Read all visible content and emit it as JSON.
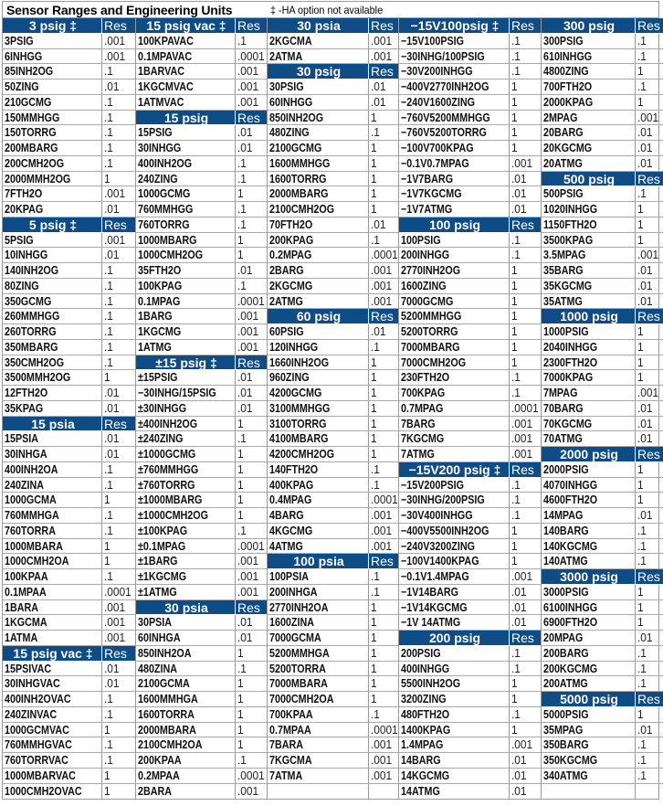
{
  "title": "Sensor Ranges and Engineering Units",
  "note": "‡ -HA option not available",
  "header_color": "#0f4c86",
  "columns": [
    {
      "rows": [
        {
          "n": "3 psig ‡",
          "r": "Res",
          "h": true
        },
        {
          "n": "3PSIG",
          "r": ".001"
        },
        {
          "n": "6INHGG",
          "r": ".001"
        },
        {
          "n": "85INH2OG",
          "r": ".1"
        },
        {
          "n": "50ZING",
          "r": ".01"
        },
        {
          "n": "210GCMG",
          "r": ".1"
        },
        {
          "n": "150MMHGG",
          "r": ".1"
        },
        {
          "n": "150TORRG",
          "r": ".1"
        },
        {
          "n": "200MBARG",
          "r": ".1"
        },
        {
          "n": "200CMH2OG",
          "r": ".1"
        },
        {
          "n": "2000MMH2OG",
          "r": "1"
        },
        {
          "n": "7FTH2O",
          "r": ".001"
        },
        {
          "n": "20KPAG",
          "r": ".01"
        },
        {
          "n": "5 psig ‡",
          "r": "Res",
          "h": true
        },
        {
          "n": "5PSIG",
          "r": ".001"
        },
        {
          "n": "10INHGG",
          "r": ".01"
        },
        {
          "n": "140INH2OG",
          "r": ".1"
        },
        {
          "n": "80ZING",
          "r": ".1"
        },
        {
          "n": "350GCMG",
          "r": ".1"
        },
        {
          "n": "260MMHGG",
          "r": ".1"
        },
        {
          "n": "260TORRG",
          "r": ".1"
        },
        {
          "n": "350MBARG",
          "r": ".1"
        },
        {
          "n": "350CMH2OG",
          "r": ".1"
        },
        {
          "n": "3500MMH2OG",
          "r": "1"
        },
        {
          "n": "12FTH2O",
          "r": ".01"
        },
        {
          "n": "35KPAG",
          "r": ".01"
        },
        {
          "n": "15 psia",
          "r": "Res",
          "h": true
        },
        {
          "n": "15PSIA",
          "r": ".01"
        },
        {
          "n": "30INHGA",
          "r": ".01"
        },
        {
          "n": "400INH2OA",
          "r": ".1"
        },
        {
          "n": "240ZINA",
          "r": ".1"
        },
        {
          "n": "1000GCMA",
          "r": "1"
        },
        {
          "n": "760MMHGA",
          "r": ".1"
        },
        {
          "n": "760TORRA",
          "r": ".1"
        },
        {
          "n": "1000MBARA",
          "r": "1"
        },
        {
          "n": "1000CMH2OA",
          "r": "1"
        },
        {
          "n": "100KPAA",
          "r": ".1"
        },
        {
          "n": "0.1MPAA",
          "r": ".0001"
        },
        {
          "n": "1BARA",
          "r": ".001"
        },
        {
          "n": "1KGCMA",
          "r": ".001"
        },
        {
          "n": "1ATMA",
          "r": ".001"
        },
        {
          "n": "15 psig vac ‡",
          "r": "Res",
          "h": true
        },
        {
          "n": "15PSIVAC",
          "r": ".01"
        },
        {
          "n": "30INHGVAC",
          "r": ".01"
        },
        {
          "n": "400INH2OVAC",
          "r": ".1"
        },
        {
          "n": "240ZINVAC",
          "r": ".1"
        },
        {
          "n": "1000GCMVAC",
          "r": "1"
        },
        {
          "n": "760MMHGVAC",
          "r": ".1"
        },
        {
          "n": "760TORRVAC",
          "r": ".1"
        },
        {
          "n": "1000MBARVAC",
          "r": "1"
        },
        {
          "n": "1000CMH2OVAC",
          "r": "1"
        }
      ]
    },
    {
      "rows": [
        {
          "n": "15 psig vac ‡",
          "r": "Res",
          "h": true
        },
        {
          "n": "100KPAVAC",
          "r": ".1"
        },
        {
          "n": "0.1MPAVAC",
          "r": ".0001"
        },
        {
          "n": "1BARVAC",
          "r": ".001"
        },
        {
          "n": "1KGCMVAC",
          "r": ".001"
        },
        {
          "n": "1ATMVAC",
          "r": ".001"
        },
        {
          "n": "15 psig",
          "r": "Res",
          "h": true
        },
        {
          "n": "15PSIG",
          "r": ".01"
        },
        {
          "n": "30INHGG",
          "r": ".01"
        },
        {
          "n": "400INH2OG",
          "r": ".1"
        },
        {
          "n": "240ZING",
          "r": ".1"
        },
        {
          "n": "1000GCMG",
          "r": "1"
        },
        {
          "n": "760MMHGG",
          "r": ".1"
        },
        {
          "n": "760TORRG",
          "r": ".1"
        },
        {
          "n": "1000MBARG",
          "r": "1"
        },
        {
          "n": "1000CMH2OG",
          "r": "1"
        },
        {
          "n": "35FTH2O",
          "r": ".01"
        },
        {
          "n": "100KPAG",
          "r": ".1"
        },
        {
          "n": "0.1MPAG",
          "r": ".0001"
        },
        {
          "n": "1BARG",
          "r": ".001"
        },
        {
          "n": "1KGCMG",
          "r": ".001"
        },
        {
          "n": "1ATMG",
          "r": ".001"
        },
        {
          "n": "±15 psig ‡",
          "r": "Res",
          "h": true
        },
        {
          "n": "±15PSIG",
          "r": ".01"
        },
        {
          "n": "−30INHG/15PSIG",
          "r": ".01"
        },
        {
          "n": "±30INHGG",
          "r": ".01"
        },
        {
          "n": "±400INH2OG",
          "r": "1"
        },
        {
          "n": "±240ZING",
          "r": ".1"
        },
        {
          "n": "±1000GCMG",
          "r": "1"
        },
        {
          "n": "±760MMHGG",
          "r": "1"
        },
        {
          "n": "±760TORRG",
          "r": "1"
        },
        {
          "n": "±1000MBARG",
          "r": "1"
        },
        {
          "n": "±1000CMH2OG",
          "r": "1"
        },
        {
          "n": "±100KPAG",
          "r": ".1"
        },
        {
          "n": "±0.1MPAG",
          "r": ".0001"
        },
        {
          "n": "±1BARG",
          "r": ".001"
        },
        {
          "n": "±1KGCMG",
          "r": ".001"
        },
        {
          "n": "±1ATMG",
          "r": ".001"
        },
        {
          "n": "30 psia",
          "r": "Res",
          "h": true
        },
        {
          "n": "30PSIA",
          "r": ".01"
        },
        {
          "n": "60INHGA",
          "r": ".01"
        },
        {
          "n": "850INH2OA",
          "r": "1"
        },
        {
          "n": "480ZINA",
          "r": ".1"
        },
        {
          "n": "2100GCMA",
          "r": "1"
        },
        {
          "n": "1600MMHGA",
          "r": "1"
        },
        {
          "n": "1600TORRA",
          "r": "1"
        },
        {
          "n": "2000MBARA",
          "r": "1"
        },
        {
          "n": "2100CMH2OA",
          "r": "1"
        },
        {
          "n": "200KPAA",
          "r": ".1"
        },
        {
          "n": "0.2MPAA",
          "r": ".0001"
        },
        {
          "n": "2BARA",
          "r": ".001"
        }
      ]
    },
    {
      "rows": [
        {
          "n": "30 psia",
          "r": "Res",
          "h": true
        },
        {
          "n": "2KGCMA",
          "r": ".001"
        },
        {
          "n": "2ATMA",
          "r": ".001"
        },
        {
          "n": "30 psig",
          "r": "Res",
          "h": true
        },
        {
          "n": "30PSIG",
          "r": ".01"
        },
        {
          "n": "60INHGG",
          "r": ".01"
        },
        {
          "n": "850INH2OG",
          "r": "1"
        },
        {
          "n": "480ZING",
          "r": ".1"
        },
        {
          "n": "2100GCMG",
          "r": "1"
        },
        {
          "n": "1600MMHGG",
          "r": "1"
        },
        {
          "n": "1600TORRG",
          "r": "1"
        },
        {
          "n": "2000MBARG",
          "r": "1"
        },
        {
          "n": "2100CMH2OG",
          "r": "1"
        },
        {
          "n": "70FTH2O",
          "r": ".01"
        },
        {
          "n": "200KPAG",
          "r": ".1"
        },
        {
          "n": "0.2MPAG",
          "r": ".0001"
        },
        {
          "n": "2BARG",
          "r": ".001"
        },
        {
          "n": "2KGCMG",
          "r": ".001"
        },
        {
          "n": "2ATMG",
          "r": ".001"
        },
        {
          "n": "60 psig",
          "r": "Res",
          "h": true
        },
        {
          "n": "60PSIG",
          "r": ".01"
        },
        {
          "n": "120INHGG",
          "r": ".1"
        },
        {
          "n": "1660INH2OG",
          "r": "1"
        },
        {
          "n": "960ZING",
          "r": "1"
        },
        {
          "n": "4200GCMG",
          "r": "1"
        },
        {
          "n": "3100MMHGG",
          "r": "1"
        },
        {
          "n": "3100TORRG",
          "r": "1"
        },
        {
          "n": "4100MBARG",
          "r": "1"
        },
        {
          "n": "4200CMH2OG",
          "r": "1"
        },
        {
          "n": "140FTH2O",
          "r": ".1"
        },
        {
          "n": "400KPAG",
          "r": ".1"
        },
        {
          "n": "0.4MPAG",
          "r": ".0001"
        },
        {
          "n": "4BARG",
          "r": ".001"
        },
        {
          "n": "4KGCMG",
          "r": ".001"
        },
        {
          "n": "4ATMG",
          "r": ".001"
        },
        {
          "n": "100 psia",
          "r": "Res",
          "h": true
        },
        {
          "n": "100PSIA",
          "r": ".1"
        },
        {
          "n": "200INHGA",
          "r": ".1"
        },
        {
          "n": "2770INH2OA",
          "r": "1"
        },
        {
          "n": "1600ZINA",
          "r": "1"
        },
        {
          "n": "7000GCMA",
          "r": "1"
        },
        {
          "n": "5200MMHGA",
          "r": "1"
        },
        {
          "n": "5200TORRA",
          "r": "1"
        },
        {
          "n": "7000MBARA",
          "r": "1"
        },
        {
          "n": "7000CMH2OA",
          "r": "1"
        },
        {
          "n": "700KPAA",
          "r": ".1"
        },
        {
          "n": "0.7MPAA",
          "r": ".0001"
        },
        {
          "n": "7BARA",
          "r": ".001"
        },
        {
          "n": "7KGCMA",
          "r": ".001"
        },
        {
          "n": "7ATMA",
          "r": ".001"
        },
        {
          "n": "",
          "r": ""
        }
      ]
    },
    {
      "rows": [
        {
          "n": "−15V100psig ‡",
          "r": "Res",
          "h": true
        },
        {
          "n": "−15V100PSIG",
          "r": ".1"
        },
        {
          "n": "−30INHG/100PSIG",
          "r": ".1"
        },
        {
          "n": "−30V200INHGG",
          "r": ".1"
        },
        {
          "n": "−400V2770INH2OG",
          "r": "1"
        },
        {
          "n": "−240V1600ZING",
          "r": "1"
        },
        {
          "n": "−760V5200MMHGG",
          "r": "1"
        },
        {
          "n": "−760V5200TORRG",
          "r": "1"
        },
        {
          "n": "−100V700KPAG",
          "r": "1"
        },
        {
          "n": "−0.1V0.7MPAG",
          "r": ".001"
        },
        {
          "n": "−1V7BARG",
          "r": ".01"
        },
        {
          "n": "−1V7KGCMG",
          "r": ".01"
        },
        {
          "n": "−1V7ATMG",
          "r": ".01"
        },
        {
          "n": "100 psig",
          "r": "Res",
          "h": true
        },
        {
          "n": "100PSIG",
          "r": ".1"
        },
        {
          "n": "200INHGG",
          "r": ".1"
        },
        {
          "n": "2770INH2OG",
          "r": "1"
        },
        {
          "n": "1600ZING",
          "r": "1"
        },
        {
          "n": "7000GCMG",
          "r": "1"
        },
        {
          "n": "5200MMHGG",
          "r": "1"
        },
        {
          "n": "5200TORRG",
          "r": "1"
        },
        {
          "n": "7000MBARG",
          "r": "1"
        },
        {
          "n": "7000CMH2OG",
          "r": "1"
        },
        {
          "n": "230FTH2O",
          "r": ".1"
        },
        {
          "n": "700KPAG",
          "r": ".1"
        },
        {
          "n": "0.7MPAG",
          "r": ".0001"
        },
        {
          "n": "7BARG",
          "r": ".001"
        },
        {
          "n": "7KGCMG",
          "r": ".001"
        },
        {
          "n": "7ATMG",
          "r": ".001"
        },
        {
          "n": "−15V200 psig ‡",
          "r": "Res",
          "h": true
        },
        {
          "n": "−15V200PSIG",
          "r": ".1"
        },
        {
          "n": "−30INHG/200PSIG",
          "r": ".1"
        },
        {
          "n": "−30V400INHGG",
          "r": ".1"
        },
        {
          "n": "−400V5500INH2OG",
          "r": "1"
        },
        {
          "n": "−240V3200ZING",
          "r": "1"
        },
        {
          "n": "−100V1400KPAG",
          "r": "1"
        },
        {
          "n": "−0.1V1.4MPAG",
          "r": ".001"
        },
        {
          "n": "−1V14BARG",
          "r": ".01"
        },
        {
          "n": "−1V14KGCMG",
          "r": ".01"
        },
        {
          "n": "−1V 14ATMG",
          "r": ".01"
        },
        {
          "n": "200 psig",
          "r": "Res",
          "h": true
        },
        {
          "n": "200PSIG",
          "r": ".1"
        },
        {
          "n": "400INHGG",
          "r": ".1"
        },
        {
          "n": "5500INH2OG",
          "r": "1"
        },
        {
          "n": "3200ZING",
          "r": "1"
        },
        {
          "n": "480FTH2O",
          "r": ".1"
        },
        {
          "n": "1400KPAG",
          "r": "1"
        },
        {
          "n": "1.4MPAG",
          "r": ".001"
        },
        {
          "n": "14BARG",
          "r": ".01"
        },
        {
          "n": "14KGCMG",
          "r": ".01"
        },
        {
          "n": "14ATMG",
          "r": ".01"
        }
      ]
    },
    {
      "rows": [
        {
          "n": "300 psig",
          "r": "Res",
          "h": true
        },
        {
          "n": "300PSIG",
          "r": ".1"
        },
        {
          "n": "610INHGG",
          "r": ".1"
        },
        {
          "n": "4800ZING",
          "r": "1"
        },
        {
          "n": "700FTH2O",
          "r": ".1"
        },
        {
          "n": "2000KPAG",
          "r": "1"
        },
        {
          "n": "2MPAG",
          "r": ".001"
        },
        {
          "n": "20BARG",
          "r": ".01"
        },
        {
          "n": "20KGCMG",
          "r": ".01"
        },
        {
          "n": "20ATMG",
          "r": ".01"
        },
        {
          "n": "500 psig",
          "r": "Res",
          "h": true
        },
        {
          "n": "500PSIG",
          "r": ".1"
        },
        {
          "n": "1020INHGG",
          "r": "1"
        },
        {
          "n": "1150FTH2O",
          "r": "1"
        },
        {
          "n": "3500KPAG",
          "r": "1"
        },
        {
          "n": "3.5MPAG",
          "r": ".001"
        },
        {
          "n": "35BARG",
          "r": ".01"
        },
        {
          "n": "35KGCMG",
          "r": ".01"
        },
        {
          "n": "35ATMG",
          "r": ".01"
        },
        {
          "n": "1000 psig",
          "r": "Res",
          "h": true
        },
        {
          "n": "1000PSIG",
          "r": "1"
        },
        {
          "n": "2040INHGG",
          "r": "1"
        },
        {
          "n": "2300FTH2O",
          "r": "1"
        },
        {
          "n": "7000KPAG",
          "r": "1"
        },
        {
          "n": "7MPAG",
          "r": ".001"
        },
        {
          "n": "70BARG",
          "r": ".01"
        },
        {
          "n": "70KGCMG",
          "r": ".01"
        },
        {
          "n": "70ATMG",
          "r": ".01"
        },
        {
          "n": "2000 psig",
          "r": "Res",
          "h": true
        },
        {
          "n": "2000PSIG",
          "r": "1"
        },
        {
          "n": "4070INHGG",
          "r": "1"
        },
        {
          "n": "4600FTH2O",
          "r": "1"
        },
        {
          "n": "14MPAG",
          "r": ".01"
        },
        {
          "n": "140BARG",
          "r": ".1"
        },
        {
          "n": "140KGCMG",
          "r": ".1"
        },
        {
          "n": "140ATMG",
          "r": ".1"
        },
        {
          "n": "3000 psig",
          "r": "Res",
          "h": true
        },
        {
          "n": "3000PSIG",
          "r": "1"
        },
        {
          "n": "6100INHGG",
          "r": "1"
        },
        {
          "n": "6900FTH2O",
          "r": "1"
        },
        {
          "n": "20MPAG",
          "r": ".01"
        },
        {
          "n": "200BARG",
          "r": ".1"
        },
        {
          "n": "200KGCMG",
          "r": ".1"
        },
        {
          "n": "200ATMG",
          "r": ".1"
        },
        {
          "n": "5000 psig",
          "r": "Res",
          "h": true
        },
        {
          "n": "5000PSIG",
          "r": "1"
        },
        {
          "n": "35MPAG",
          "r": ".01"
        },
        {
          "n": "350BARG",
          "r": ".1"
        },
        {
          "n": "350KGCMG",
          "r": ".1"
        },
        {
          "n": "340ATMG",
          "r": ".1"
        },
        {
          "n": "",
          "r": ""
        }
      ]
    }
  ]
}
